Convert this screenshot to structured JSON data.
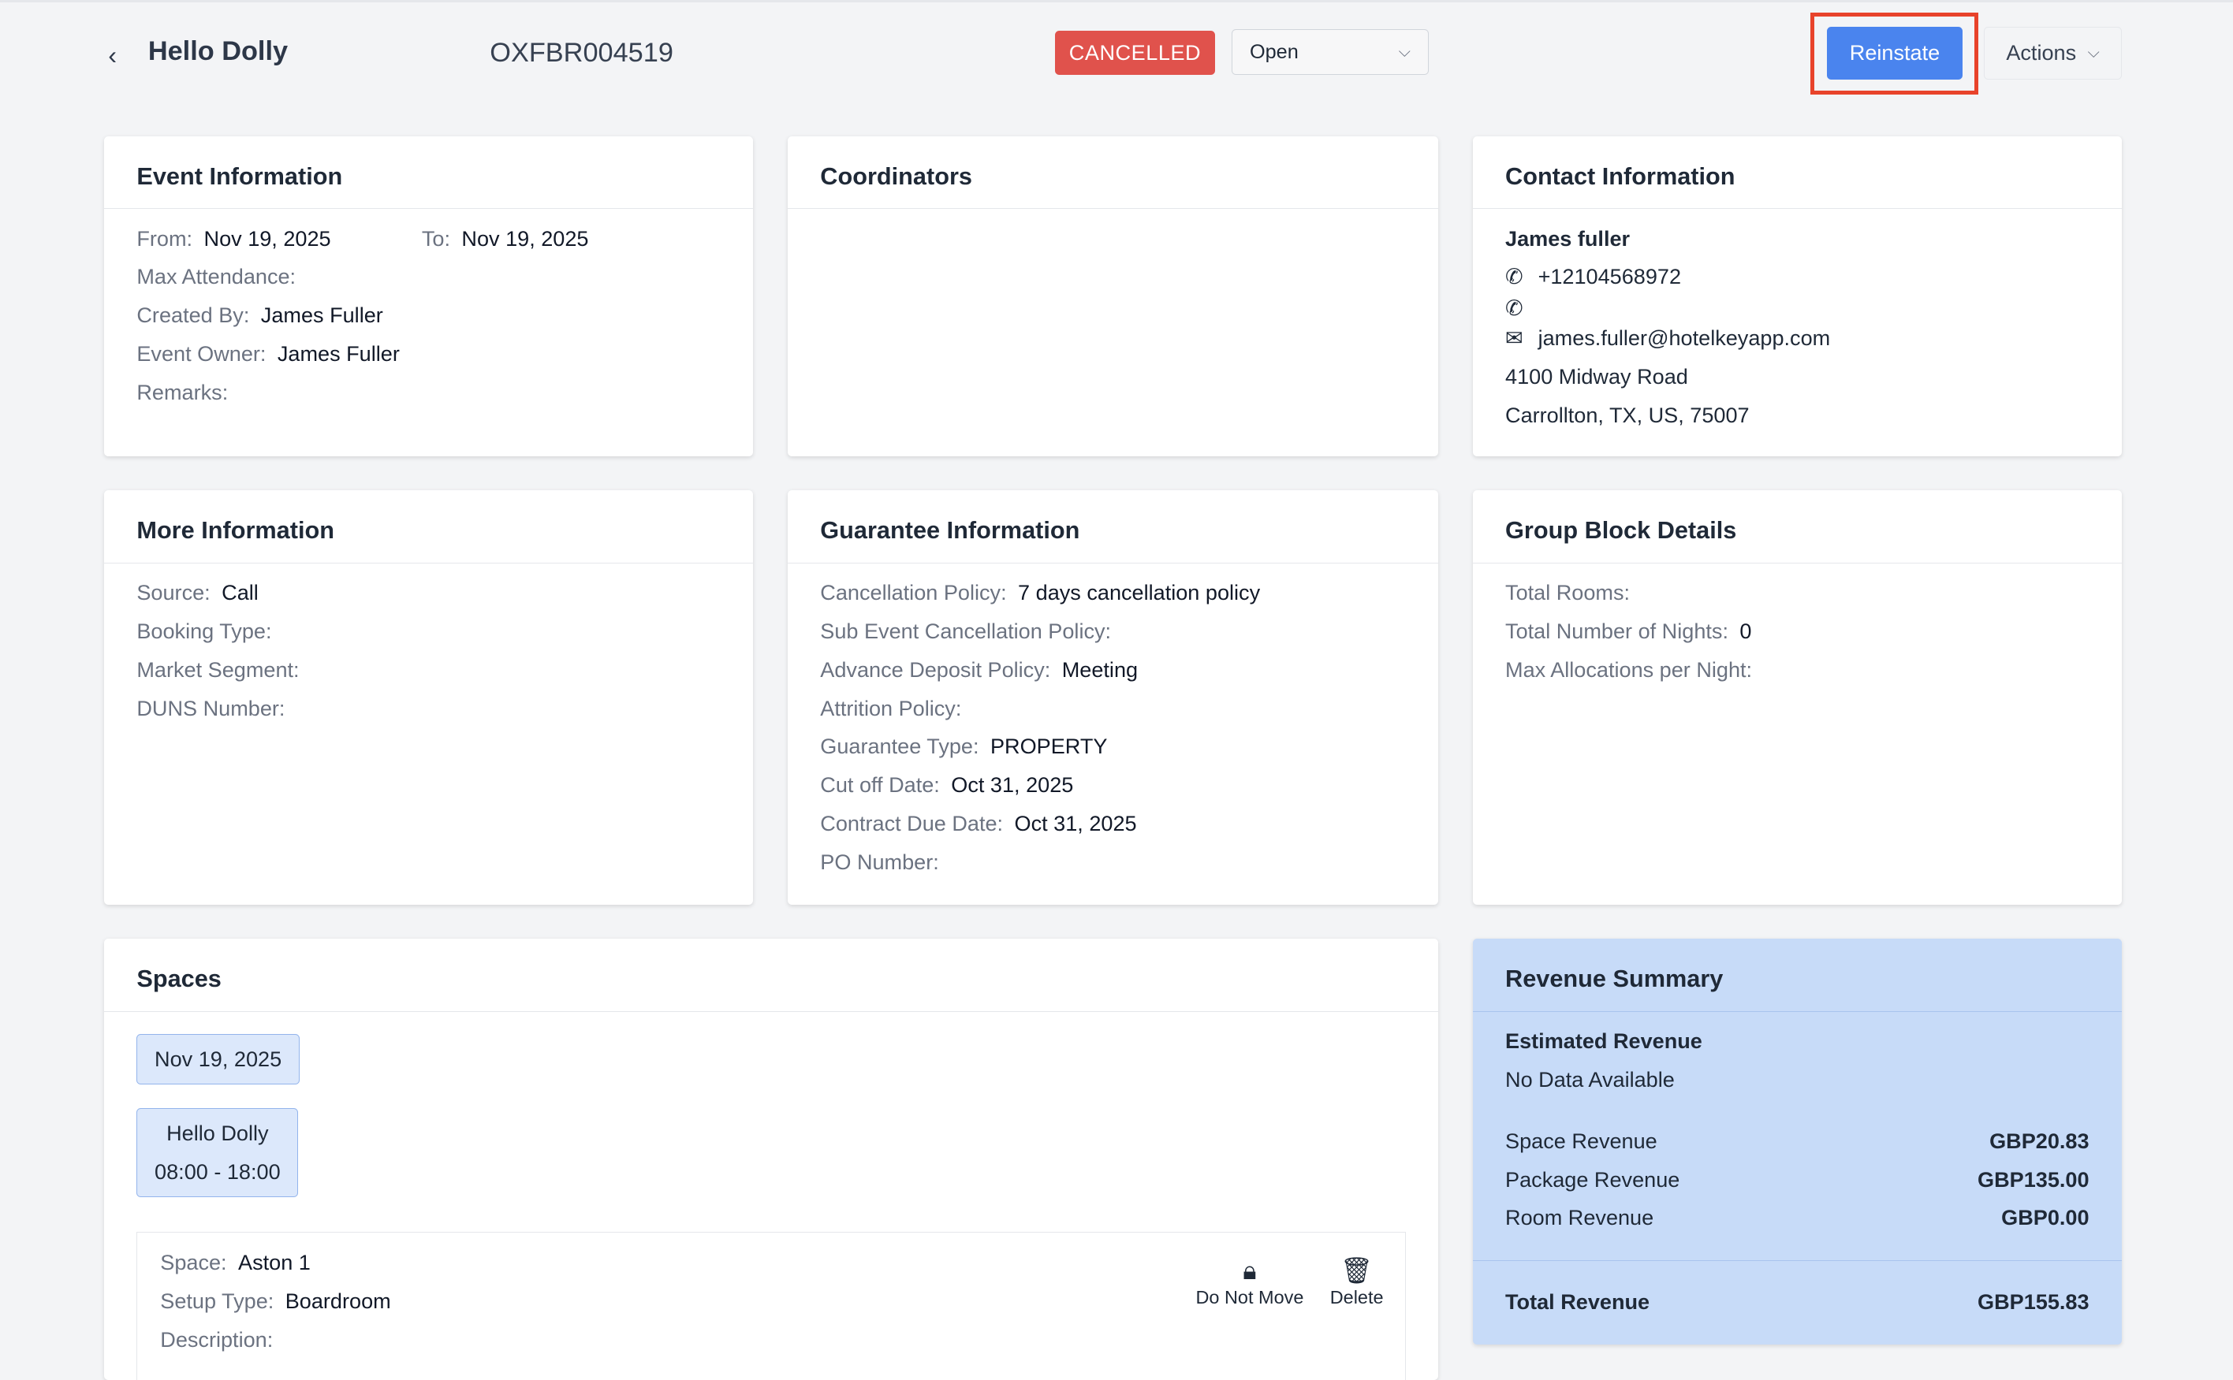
{
  "header": {
    "title": "Hello Dolly",
    "code": "OXFBR004519",
    "status_badge": "CANCELLED",
    "status_select": "Open",
    "reinstate_label": "Reinstate",
    "actions_label": "Actions"
  },
  "colors": {
    "badge": "#e0524c",
    "primary": "#4a84ee",
    "highlight": "#e8432b",
    "revenue_bg": "#c7dbf8"
  },
  "event_info": {
    "title": "Event Information",
    "from_label": "From:",
    "from": "Nov 19, 2025",
    "to_label": "To:",
    "to": "Nov 19, 2025",
    "rows": [
      {
        "label": "Max Attendance:",
        "value": ""
      },
      {
        "label": "Created By:",
        "value": "James Fuller"
      },
      {
        "label": "Event Owner:",
        "value": "James Fuller"
      },
      {
        "label": "Remarks:",
        "value": ""
      }
    ]
  },
  "coordinators": {
    "title": "Coordinators"
  },
  "contact": {
    "title": "Contact Information",
    "name": "James fuller",
    "phone": "+12104568972",
    "phone2": "",
    "email": "james.fuller@hotelkeyapp.com",
    "address1": "4100 Midway Road",
    "address2": "Carrollton, TX, US, 75007"
  },
  "more_info": {
    "title": "More Information",
    "rows": [
      {
        "label": "Source:",
        "value": "Call"
      },
      {
        "label": "Booking Type:",
        "value": ""
      },
      {
        "label": "Market Segment:",
        "value": ""
      },
      {
        "label": "DUNS Number:",
        "value": ""
      }
    ]
  },
  "guarantee": {
    "title": "Guarantee Information",
    "rows": [
      {
        "label": "Cancellation Policy:",
        "value": "7 days cancellation policy"
      },
      {
        "label": "Sub Event Cancellation Policy:",
        "value": ""
      },
      {
        "label": "Advance Deposit Policy:",
        "value": "Meeting"
      },
      {
        "label": "Attrition Policy:",
        "value": ""
      },
      {
        "label": "Guarantee Type:",
        "value": "PROPERTY"
      },
      {
        "label": "Cut off Date:",
        "value": "Oct 31, 2025"
      },
      {
        "label": "Contract Due Date:",
        "value": "Oct 31, 2025"
      },
      {
        "label": "PO Number:",
        "value": ""
      }
    ]
  },
  "group_block": {
    "title": "Group Block Details",
    "rows": [
      {
        "label": "Total Rooms:",
        "value": ""
      },
      {
        "label": "Total Number of Nights:",
        "value": "0"
      },
      {
        "label": "Max Allocations per Night:",
        "value": ""
      }
    ]
  },
  "spaces": {
    "title": "Spaces",
    "date_chip": "Nov 19, 2025",
    "event_name": "Hello Dolly",
    "event_time": "08:00 - 18:00",
    "rows": [
      {
        "label": "Space:",
        "value": "Aston 1"
      },
      {
        "label": "Setup Type:",
        "value": "Boardroom"
      },
      {
        "label": "Description:",
        "value": ""
      }
    ],
    "do_not_move_label": "Do Not Move",
    "delete_label": "Delete"
  },
  "revenue": {
    "title": "Revenue Summary",
    "estimated_label": "Estimated Revenue",
    "estimated_value": "No Data Available",
    "items": [
      {
        "label": "Space Revenue",
        "value": "GBP20.83"
      },
      {
        "label": "Package Revenue",
        "value": "GBP135.00"
      },
      {
        "label": "Room Revenue",
        "value": "GBP0.00"
      }
    ],
    "total_label": "Total Revenue",
    "total_value": "GBP155.83"
  }
}
